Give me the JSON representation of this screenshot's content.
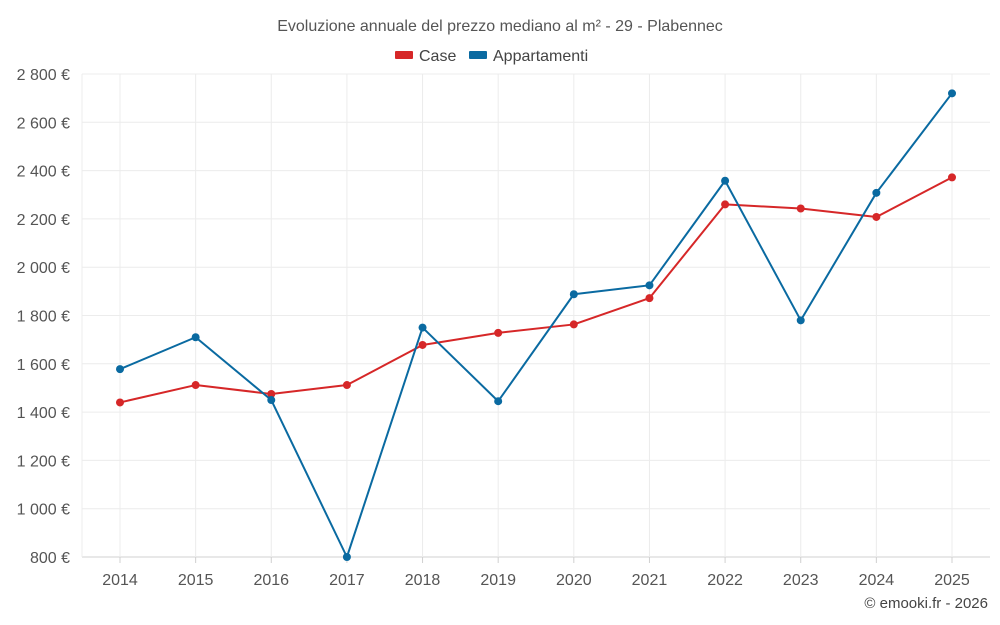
{
  "chart_data": {
    "type": "line",
    "title": "Evoluzione annuale del prezzo mediano al m² - 29 - Plabennec",
    "categories": [
      "2014",
      "2015",
      "2016",
      "2017",
      "2018",
      "2019",
      "2020",
      "2021",
      "2022",
      "2023",
      "2024",
      "2025"
    ],
    "series": [
      {
        "name": "Case",
        "color": "#d62728",
        "values": [
          1440,
          1512,
          1475,
          1512,
          1678,
          1728,
          1763,
          1872,
          2260,
          2243,
          2208,
          2372
        ]
      },
      {
        "name": "Appartamenti",
        "color": "#0a6aa1",
        "values": [
          1578,
          1710,
          1450,
          800,
          1750,
          1445,
          1888,
          1925,
          2358,
          1780,
          2308,
          2720
        ]
      }
    ],
    "ylim": [
      800,
      2800
    ],
    "yticks": [
      800,
      1000,
      1200,
      1400,
      1600,
      1800,
      2000,
      2200,
      2400,
      2600,
      2800
    ],
    "ytick_labels": [
      "800 €",
      "1 000 €",
      "1 200 €",
      "1 400 €",
      "1 600 €",
      "1 800 €",
      "2 000 €",
      "2 200 €",
      "2 400 €",
      "2 600 €",
      "2 800 €"
    ],
    "legend_position": "top-center",
    "grid": true
  },
  "credit": "© emooki.fr - 2026"
}
